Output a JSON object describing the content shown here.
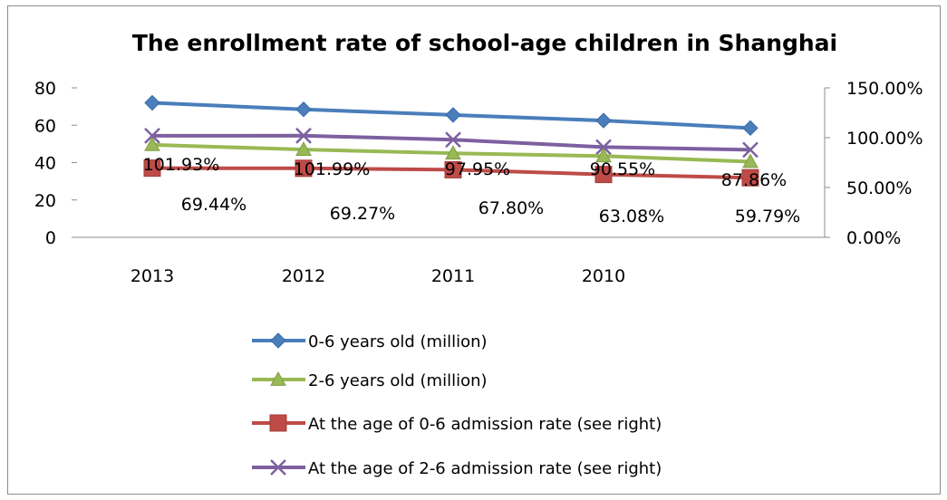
{
  "chart_data": {
    "type": "line",
    "title": "The enrollment rate of school-age children in Shanghai",
    "categories": [
      "2013",
      "2012",
      "2011",
      "2010",
      ""
    ],
    "y_left": {
      "ticks": [
        "0",
        "20",
        "40",
        "60",
        "80"
      ],
      "range": [
        0,
        80
      ]
    },
    "y_right": {
      "ticks": [
        "0.00%",
        "50.00%",
        "100.00%",
        "150.00%"
      ],
      "range": [
        0,
        150
      ]
    },
    "grid": false,
    "legend_position": "bottom",
    "series": [
      {
        "name": "0-6 years old (million)",
        "axis": "left",
        "color": "#4a7ebb",
        "marker": "diamond",
        "values": [
          72,
          68.5,
          65.5,
          62.5,
          58.5
        ]
      },
      {
        "name": "2-6 years old (million)",
        "axis": "left",
        "color": "#98b954",
        "marker": "triangle",
        "values": [
          49.5,
          47,
          45,
          43.5,
          40.5
        ]
      },
      {
        "name": "At the age of 0-6 admission rate (see right)",
        "axis": "right",
        "color": "#be4b48",
        "marker": "square",
        "values": [
          69.44,
          69.27,
          67.8,
          63.08,
          59.79
        ],
        "labels": [
          "69.44%",
          "69.27%",
          "67.80%",
          "63.08%",
          "59.79%"
        ]
      },
      {
        "name": "At the age of 2-6 admission rate (see right)",
        "axis": "right",
        "color": "#7d60a0",
        "marker": "x",
        "values": [
          101.93,
          101.99,
          97.95,
          90.55,
          87.86
        ],
        "labels": [
          "101.93%",
          "101.99%",
          "97.95%",
          "90.55%",
          "87.86%"
        ]
      }
    ]
  }
}
